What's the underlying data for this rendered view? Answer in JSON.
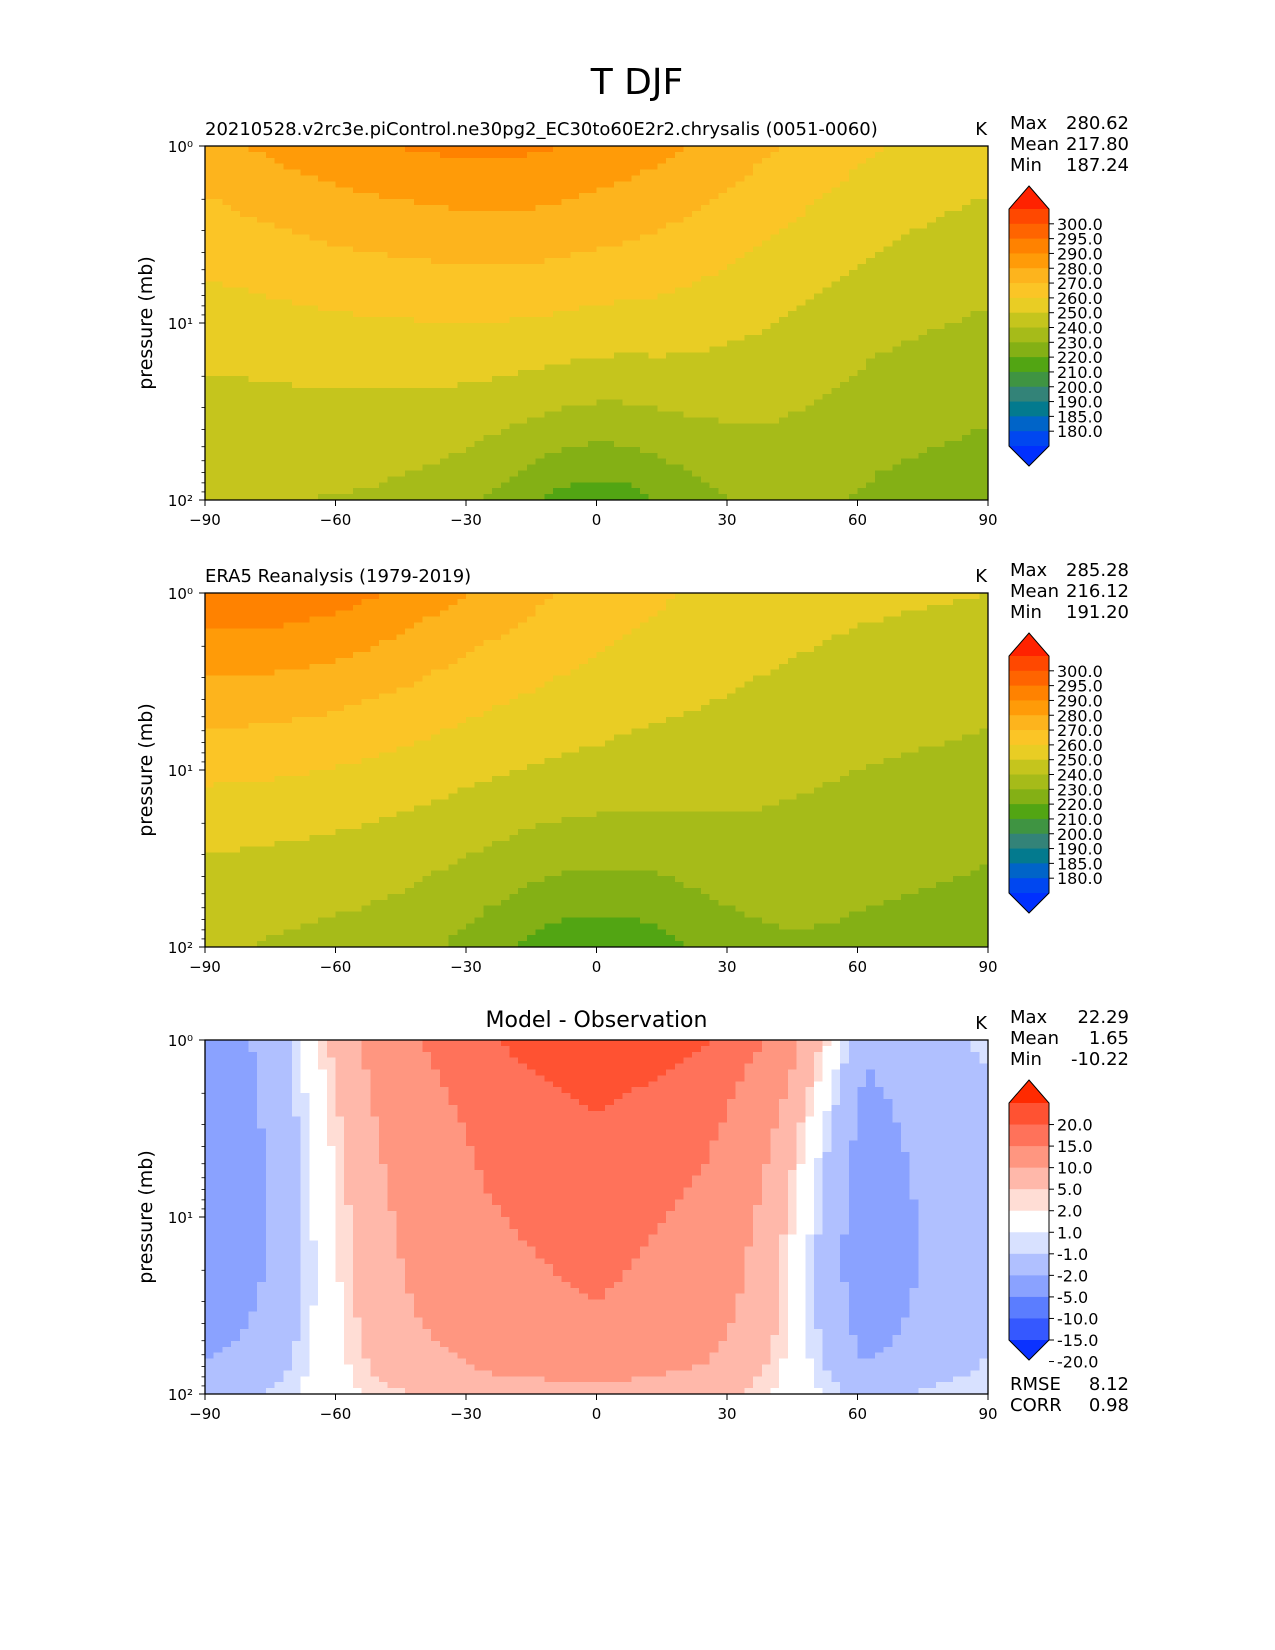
{
  "figure": {
    "title": "T DJF"
  },
  "chart_data": [
    {
      "type": "heatmap",
      "title": "20210528.v2rc3e.piControl.ne30pg2_EC30to60E2r2.chrysalis (0051-0060)",
      "units": "K",
      "ylabel": "pressure (mb)",
      "xlim": [
        -90,
        90
      ],
      "ylim": [
        100,
        1
      ],
      "yscale": "log",
      "x_ticks": [
        "−90",
        "−60",
        "−30",
        "0",
        "30",
        "60",
        "90"
      ],
      "y_ticks": [
        "10⁰",
        "10¹",
        "10²"
      ],
      "stats": [
        {
          "label": "Max",
          "value": "280.62"
        },
        {
          "label": "Mean",
          "value": "217.80"
        },
        {
          "label": "Min",
          "value": "187.24"
        }
      ],
      "colorbar": {
        "extend": "both",
        "labels": [
          "300.0",
          "295.0",
          "290.0",
          "280.0",
          "270.0",
          "260.0",
          "250.0",
          "240.0",
          "230.0",
          "220.0",
          "210.0",
          "200.0",
          "190.0",
          "185.0",
          "180.0"
        ],
        "colors": [
          "#ff2200",
          "#ff4800",
          "#ff6400",
          "#ff8200",
          "#ff9b08",
          "#fdb41d",
          "#fbc526",
          "#e9cd24",
          "#c5c51d",
          "#a6bb19",
          "#84b015",
          "#52a513",
          "#3f9442",
          "#338378",
          "#037a8e",
          "#0064c8",
          "#0047f0",
          "#0030ff"
        ]
      },
      "field": {
        "base": 236,
        "lat_extra": [
          [
            -90,
            4
          ],
          [
            -45,
            4
          ],
          [
            -15,
            7
          ],
          [
            15,
            6
          ],
          [
            40,
            0
          ],
          [
            65,
            -8
          ],
          [
            90,
            -12
          ]
        ],
        "hot_top": {
          "amp": 34,
          "center_lat": -30,
          "spread": 78
        },
        "cold_tropical_bottom": {
          "amp": 28,
          "center_lat": 0,
          "spread": 28
        }
      }
    },
    {
      "type": "heatmap",
      "title": "ERA5 Reanalysis (1979-2019)",
      "units": "K",
      "ylabel": "pressure (mb)",
      "xlim": [
        -90,
        90
      ],
      "ylim": [
        100,
        1
      ],
      "yscale": "log",
      "x_ticks": [
        "−90",
        "−60",
        "−30",
        "0",
        "30",
        "60",
        "90"
      ],
      "y_ticks": [
        "10⁰",
        "10¹",
        "10²"
      ],
      "stats": [
        {
          "label": "Max",
          "value": "285.28"
        },
        {
          "label": "Mean",
          "value": "216.12"
        },
        {
          "label": "Min",
          "value": "191.20"
        }
      ],
      "colorbar": {
        "extend": "both",
        "labels": [
          "300.0",
          "295.0",
          "290.0",
          "280.0",
          "270.0",
          "260.0",
          "250.0",
          "240.0",
          "230.0",
          "220.0",
          "210.0",
          "200.0",
          "190.0",
          "185.0",
          "180.0"
        ],
        "colors": [
          "#ff2200",
          "#ff4800",
          "#ff6400",
          "#ff8200",
          "#ff9b08",
          "#fdb41d",
          "#fbc526",
          "#e9cd24",
          "#c5c51d",
          "#a6bb19",
          "#84b015",
          "#52a513",
          "#3f9442",
          "#338378",
          "#037a8e",
          "#0064c8",
          "#0047f0",
          "#0030ff"
        ]
      },
      "field": {
        "base": 234,
        "lat_extra": [
          [
            -90,
            7
          ],
          [
            -60,
            4
          ],
          [
            -30,
            2
          ],
          [
            0,
            3
          ],
          [
            30,
            0
          ],
          [
            60,
            -6
          ],
          [
            90,
            -10
          ]
        ],
        "hot_top": {
          "amp": 42,
          "center_lat": -80,
          "spread": 70
        },
        "cold_tropical_bottom": {
          "amp": 25,
          "center_lat": 0,
          "spread": 30
        }
      }
    },
    {
      "type": "heatmap",
      "title": "Model - Observation",
      "units": "K",
      "ylabel": "pressure (mb)",
      "xlim": [
        -90,
        90
      ],
      "ylim": [
        100,
        1
      ],
      "yscale": "log",
      "x_ticks": [
        "−90",
        "−60",
        "−30",
        "0",
        "30",
        "60",
        "90"
      ],
      "y_ticks": [
        "10⁰",
        "10¹",
        "10²"
      ],
      "stats": [
        {
          "label": "Max",
          "value": "22.29"
        },
        {
          "label": "Mean",
          "value": "1.65"
        },
        {
          "label": "Min",
          "value": "-10.22"
        }
      ],
      "extra_stats": [
        {
          "label": "RMSE",
          "value": "8.12"
        },
        {
          "label": "CORR",
          "value": "0.98"
        }
      ],
      "colorbar": {
        "extend": "both",
        "labels": [
          "20.0",
          "15.0",
          "10.0",
          "5.0",
          "2.0",
          "1.0",
          "-1.0",
          "-2.0",
          "-5.0",
          "-10.0",
          "-15.0",
          "-20.0"
        ],
        "colors": [
          "#ff2a00",
          "#ff5232",
          "#ff725a",
          "#ff9680",
          "#ffb8aa",
          "#ffddd5",
          "#ffffff",
          "#d8e1ff",
          "#b0c0ff",
          "#8aa2ff",
          "#5b7dff",
          "#3558ff",
          "#0b32ff"
        ]
      },
      "field": {
        "lat_profile": [
          [
            -90,
            -8
          ],
          [
            -75,
            -5
          ],
          [
            -62,
            0
          ],
          [
            -50,
            4
          ],
          [
            -25,
            9
          ],
          [
            0,
            11
          ],
          [
            25,
            8
          ],
          [
            40,
            3
          ],
          [
            50,
            -2
          ],
          [
            62,
            -8
          ],
          [
            75,
            -5
          ],
          [
            90,
            -3
          ]
        ],
        "top_boost": {
          "amp": 8,
          "center_lat": 10,
          "spread": 60
        },
        "bottom_damp": 0.65
      }
    }
  ]
}
